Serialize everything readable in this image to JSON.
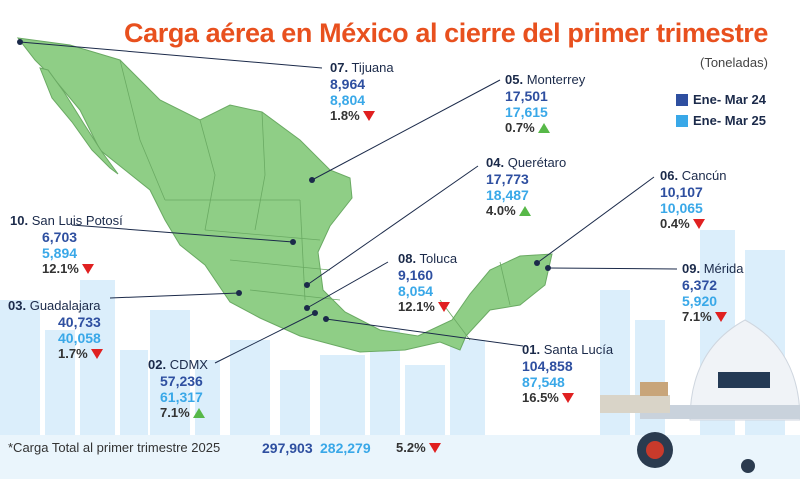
{
  "title": "Carga aérea en México al cierre del primer trimestre",
  "subtitle": "(Toneladas)",
  "colors": {
    "accent": "#e8501e",
    "series_a": "#2e4fa0",
    "series_b": "#39a8e8",
    "down": "#e02020",
    "up": "#57b848",
    "map": "#8fce86"
  },
  "legend": [
    {
      "label": "Ene- Mar 24",
      "color": "#2e4fa0"
    },
    {
      "label": "Ene- Mar 25",
      "color": "#39a8e8"
    }
  ],
  "chart_data": {
    "type": "table",
    "title": "Carga aérea en México al cierre del primer trimestre",
    "unit": "(Toneladas)",
    "series_names": [
      "Ene- Mar 24",
      "Ene- Mar 25"
    ],
    "rows": [
      {
        "rank": "07.",
        "name": "Tijuana",
        "v2024": "8,964",
        "v2025": "8,804",
        "change": "1.8%",
        "direction": "down"
      },
      {
        "rank": "05.",
        "name": "Monterrey",
        "v2024": "17,501",
        "v2025": "17,615",
        "change": "0.7%",
        "direction": "up"
      },
      {
        "rank": "04.",
        "name": "Querétaro",
        "v2024": "17,773",
        "v2025": "18,487",
        "change": "4.0%",
        "direction": "up"
      },
      {
        "rank": "06.",
        "name": "Cancún",
        "v2024": "10,107",
        "v2025": "10,065",
        "change": "0.4%",
        "direction": "down"
      },
      {
        "rank": "10.",
        "name": "San Luis Potosí",
        "v2024": "6,703",
        "v2025": "5,894",
        "change": "12.1%",
        "direction": "down"
      },
      {
        "rank": "08.",
        "name": "Toluca",
        "v2024": "9,160",
        "v2025": "8,054",
        "change": "12.1%",
        "direction": "down"
      },
      {
        "rank": "09.",
        "name": "Mérida",
        "v2024": "6,372",
        "v2025": "5,920",
        "change": "7.1%",
        "direction": "down"
      },
      {
        "rank": "03.",
        "name": "Guadalajara",
        "v2024": "40,733",
        "v2025": "40,058",
        "change": "1.7%",
        "direction": "down"
      },
      {
        "rank": "02.",
        "name": "CDMX",
        "v2024": "57,236",
        "v2025": "61,317",
        "change": "7.1%",
        "direction": "up"
      },
      {
        "rank": "01.",
        "name": "Santa Lucía",
        "v2024": "104,858",
        "v2025": "87,548",
        "change": "16.5%",
        "direction": "down"
      }
    ],
    "total": {
      "label": "*Carga Total al primer trimestre 2025",
      "v2024": "297,903",
      "v2025": "282,279",
      "change": "5.2%",
      "direction": "down"
    }
  }
}
